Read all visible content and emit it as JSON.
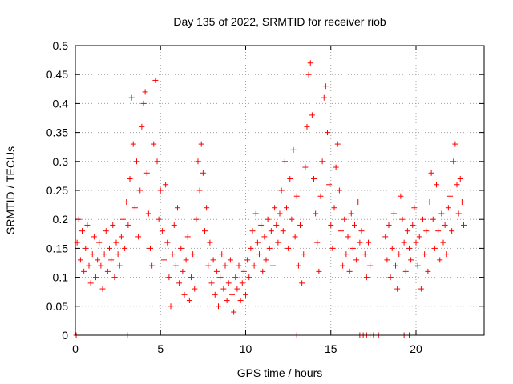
{
  "chart_data": {
    "type": "scatter",
    "title": "Day 135 of 2022, SRMTID for receiver riob",
    "xlabel": "GPS time / hours",
    "ylabel": "SRMTID / TECUs",
    "xlim": [
      0,
      24
    ],
    "ylim": [
      0,
      0.5
    ],
    "xticks": [
      0,
      5,
      10,
      15,
      20
    ],
    "xtick_labels": [
      "0",
      "5",
      "10",
      "15",
      "20"
    ],
    "yticks": [
      0,
      0.05,
      0.1,
      0.15,
      0.2,
      0.25,
      0.3,
      0.35,
      0.4,
      0.45,
      0.5
    ],
    "ytick_labels": [
      "0",
      "0.05",
      "0.1",
      "0.15",
      "0.2",
      "0.25",
      "0.3",
      "0.35",
      "0.4",
      "0.45",
      "0.5"
    ],
    "grid": true,
    "marker": "+",
    "color": "#ff0000",
    "series": [
      {
        "points": [
          [
            0.1,
            0.16
          ],
          [
            0.2,
            0.2
          ],
          [
            0.3,
            0.13
          ],
          [
            0.4,
            0.18
          ],
          [
            0.5,
            0.11
          ],
          [
            0.6,
            0.15
          ],
          [
            0.7,
            0.19
          ],
          [
            0.8,
            0.12
          ],
          [
            0.9,
            0.09
          ],
          [
            1.0,
            0.14
          ],
          [
            1.1,
            0.17
          ],
          [
            1.2,
            0.1
          ],
          [
            1.3,
            0.13
          ],
          [
            1.4,
            0.16
          ],
          [
            1.5,
            0.12
          ],
          [
            1.6,
            0.08
          ],
          [
            1.7,
            0.14
          ],
          [
            1.8,
            0.18
          ],
          [
            1.9,
            0.11
          ],
          [
            2.0,
            0.15
          ],
          [
            2.1,
            0.13
          ],
          [
            2.2,
            0.19
          ],
          [
            2.3,
            0.1
          ],
          [
            2.4,
            0.16
          ],
          [
            2.5,
            0.14
          ],
          [
            2.6,
            0.12
          ],
          [
            2.7,
            0.17
          ],
          [
            2.8,
            0.2
          ],
          [
            2.9,
            0.15
          ],
          [
            3.0,
            0.23
          ],
          [
            3.1,
            0.19
          ],
          [
            3.2,
            0.27
          ],
          [
            3.3,
            0.41
          ],
          [
            3.4,
            0.33
          ],
          [
            3.5,
            0.22
          ],
          [
            3.6,
            0.3
          ],
          [
            3.7,
            0.17
          ],
          [
            3.8,
            0.25
          ],
          [
            3.9,
            0.36
          ],
          [
            4.0,
            0.4
          ],
          [
            4.1,
            0.42
          ],
          [
            4.2,
            0.28
          ],
          [
            4.3,
            0.21
          ],
          [
            4.4,
            0.15
          ],
          [
            4.5,
            0.12
          ],
          [
            4.6,
            0.33
          ],
          [
            4.7,
            0.44
          ],
          [
            4.8,
            0.3
          ],
          [
            4.9,
            0.2
          ],
          [
            5.0,
            0.25
          ],
          [
            5.1,
            0.18
          ],
          [
            5.2,
            0.13
          ],
          [
            5.3,
            0.26
          ],
          [
            5.4,
            0.16
          ],
          [
            5.5,
            0.1
          ],
          [
            5.6,
            0.05
          ],
          [
            5.7,
            0.14
          ],
          [
            5.8,
            0.19
          ],
          [
            5.9,
            0.12
          ],
          [
            6.0,
            0.22
          ],
          [
            6.1,
            0.09
          ],
          [
            6.2,
            0.15
          ],
          [
            6.3,
            0.11
          ],
          [
            6.4,
            0.07
          ],
          [
            6.5,
            0.13
          ],
          [
            6.6,
            0.17
          ],
          [
            6.7,
            0.06
          ],
          [
            6.8,
            0.1
          ],
          [
            6.9,
            0.14
          ],
          [
            7.0,
            0.08
          ],
          [
            7.1,
            0.2
          ],
          [
            7.2,
            0.3
          ],
          [
            7.3,
            0.25
          ],
          [
            7.4,
            0.33
          ],
          [
            7.5,
            0.28
          ],
          [
            7.6,
            0.18
          ],
          [
            7.7,
            0.22
          ],
          [
            7.8,
            0.12
          ],
          [
            7.9,
            0.16
          ],
          [
            8.0,
            0.09
          ],
          [
            8.1,
            0.13
          ],
          [
            8.2,
            0.07
          ],
          [
            8.3,
            0.11
          ],
          [
            8.4,
            0.05
          ],
          [
            8.5,
            0.1
          ],
          [
            8.6,
            0.14
          ],
          [
            8.7,
            0.08
          ],
          [
            8.8,
            0.12
          ],
          [
            8.9,
            0.06
          ],
          [
            9.0,
            0.09
          ],
          [
            9.1,
            0.13
          ],
          [
            9.2,
            0.07
          ],
          [
            9.3,
            0.04
          ],
          [
            9.4,
            0.1
          ],
          [
            9.5,
            0.08
          ],
          [
            9.6,
            0.12
          ],
          [
            9.7,
            0.06
          ],
          [
            9.8,
            0.09
          ],
          [
            9.9,
            0.11
          ],
          [
            10.0,
            0.07
          ],
          [
            10.1,
            0.13
          ],
          [
            10.2,
            0.1
          ],
          [
            10.3,
            0.15
          ],
          [
            10.4,
            0.18
          ],
          [
            10.5,
            0.12
          ],
          [
            10.6,
            0.21
          ],
          [
            10.7,
            0.16
          ],
          [
            10.8,
            0.14
          ],
          [
            10.9,
            0.19
          ],
          [
            11.0,
            0.11
          ],
          [
            11.1,
            0.17
          ],
          [
            11.2,
            0.13
          ],
          [
            11.3,
            0.2
          ],
          [
            11.4,
            0.15
          ],
          [
            11.5,
            0.18
          ],
          [
            11.6,
            0.12
          ],
          [
            11.7,
            0.22
          ],
          [
            11.8,
            0.19
          ],
          [
            11.9,
            0.16
          ],
          [
            12.0,
            0.21
          ],
          [
            12.1,
            0.25
          ],
          [
            12.2,
            0.18
          ],
          [
            12.3,
            0.3
          ],
          [
            12.4,
            0.22
          ],
          [
            12.5,
            0.15
          ],
          [
            12.6,
            0.27
          ],
          [
            12.7,
            0.2
          ],
          [
            12.8,
            0.32
          ],
          [
            12.9,
            0.17
          ],
          [
            13.0,
            0.24
          ],
          [
            13.1,
            0.12
          ],
          [
            13.2,
            0.19
          ],
          [
            13.3,
            0.09
          ],
          [
            13.4,
            0.14
          ],
          [
            13.5,
            0.29
          ],
          [
            13.6,
            0.36
          ],
          [
            13.7,
            0.45
          ],
          [
            13.8,
            0.47
          ],
          [
            13.9,
            0.38
          ],
          [
            14.0,
            0.27
          ],
          [
            14.1,
            0.21
          ],
          [
            14.2,
            0.16
          ],
          [
            14.3,
            0.11
          ],
          [
            14.4,
            0.24
          ],
          [
            14.5,
            0.3
          ],
          [
            14.6,
            0.41
          ],
          [
            14.7,
            0.43
          ],
          [
            14.8,
            0.35
          ],
          [
            14.9,
            0.26
          ],
          [
            15.0,
            0.19
          ],
          [
            15.1,
            0.15
          ],
          [
            15.2,
            0.22
          ],
          [
            15.3,
            0.29
          ],
          [
            15.4,
            0.33
          ],
          [
            15.5,
            0.25
          ],
          [
            15.6,
            0.18
          ],
          [
            15.7,
            0.12
          ],
          [
            15.8,
            0.2
          ],
          [
            15.9,
            0.14
          ],
          [
            16.0,
            0.17
          ],
          [
            16.1,
            0.11
          ],
          [
            16.2,
            0.21
          ],
          [
            16.3,
            0.15
          ],
          [
            16.4,
            0.19
          ],
          [
            16.5,
            0.13
          ],
          [
            16.6,
            0.23
          ],
          [
            16.7,
            0.16
          ],
          [
            16.8,
            0.18
          ],
          [
            17.0,
            0.14
          ],
          [
            17.1,
            0.1
          ],
          [
            17.2,
            0.16
          ],
          [
            17.3,
            0.12
          ],
          [
            18.2,
            0.17
          ],
          [
            18.3,
            0.13
          ],
          [
            18.4,
            0.19
          ],
          [
            18.5,
            0.1
          ],
          [
            18.6,
            0.15
          ],
          [
            18.7,
            0.21
          ],
          [
            18.8,
            0.12
          ],
          [
            18.9,
            0.08
          ],
          [
            19.0,
            0.14
          ],
          [
            19.1,
            0.24
          ],
          [
            19.2,
            0.2
          ],
          [
            19.3,
            0.16
          ],
          [
            19.4,
            0.11
          ],
          [
            19.5,
            0.18
          ],
          [
            19.6,
            0.15
          ],
          [
            19.7,
            0.13
          ],
          [
            19.8,
            0.19
          ],
          [
            19.9,
            0.22
          ],
          [
            20.0,
            0.16
          ],
          [
            20.1,
            0.12
          ],
          [
            20.2,
            0.17
          ],
          [
            20.3,
            0.08
          ],
          [
            20.4,
            0.2
          ],
          [
            20.5,
            0.14
          ],
          [
            20.6,
            0.18
          ],
          [
            20.7,
            0.11
          ],
          [
            20.8,
            0.23
          ],
          [
            20.9,
            0.28
          ],
          [
            21.0,
            0.2
          ],
          [
            21.1,
            0.15
          ],
          [
            21.2,
            0.26
          ],
          [
            21.3,
            0.18
          ],
          [
            21.4,
            0.13
          ],
          [
            21.5,
            0.21
          ],
          [
            21.6,
            0.16
          ],
          [
            21.7,
            0.19
          ],
          [
            21.8,
            0.14
          ],
          [
            21.9,
            0.22
          ],
          [
            22.0,
            0.24
          ],
          [
            22.1,
            0.18
          ],
          [
            22.2,
            0.3
          ],
          [
            22.3,
            0.33
          ],
          [
            22.4,
            0.26
          ],
          [
            22.5,
            0.21
          ],
          [
            22.6,
            0.27
          ],
          [
            22.7,
            0.23
          ],
          [
            22.8,
            0.19
          ],
          [
            0.05,
            0
          ],
          [
            3.05,
            0
          ],
          [
            13.0,
            0
          ],
          [
            16.7,
            0
          ],
          [
            16.9,
            0
          ],
          [
            17.1,
            0
          ],
          [
            17.3,
            0
          ],
          [
            17.5,
            0
          ],
          [
            17.8,
            0
          ],
          [
            18.0,
            0
          ],
          [
            19.3,
            0
          ],
          [
            19.6,
            0
          ]
        ]
      }
    ]
  }
}
